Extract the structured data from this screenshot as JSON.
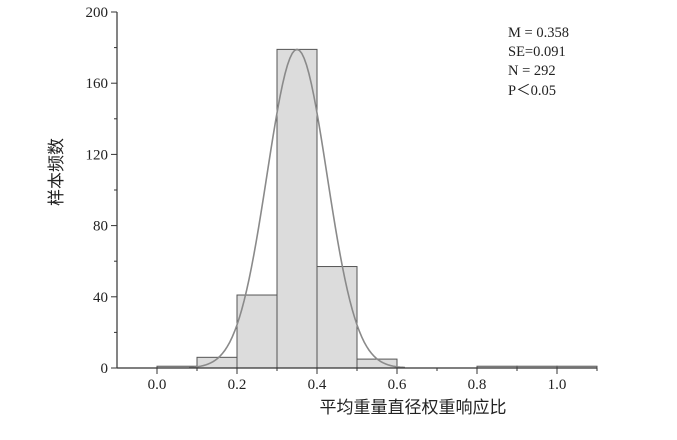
{
  "chart_data": {
    "type": "bar",
    "subtype": "histogram-with-normal-curve",
    "xlabel": "平均重量直径权重响应比",
    "ylabel": "样本频数",
    "xlim": [
      -0.1,
      1.1
    ],
    "ylim": [
      0,
      200
    ],
    "x_ticks": [
      0.0,
      0.2,
      0.4,
      0.6,
      0.8,
      1.0
    ],
    "x_tick_labels": [
      "0.0",
      "0.2",
      "0.4",
      "0.6",
      "0.8",
      "1.0"
    ],
    "y_ticks": [
      0,
      40,
      80,
      120,
      160,
      200
    ],
    "y_tick_labels": [
      "0",
      "40",
      "80",
      "120",
      "160",
      "200"
    ],
    "bins": [
      {
        "x0": 0.0,
        "x1": 0.1,
        "count": 1
      },
      {
        "x0": 0.1,
        "x1": 0.2,
        "count": 6
      },
      {
        "x0": 0.2,
        "x1": 0.3,
        "count": 41
      },
      {
        "x0": 0.3,
        "x1": 0.4,
        "count": 179
      },
      {
        "x0": 0.4,
        "x1": 0.5,
        "count": 57
      },
      {
        "x0": 0.5,
        "x1": 0.6,
        "count": 5
      },
      {
        "x0": 0.8,
        "x1": 0.9,
        "count": 1
      },
      {
        "x0": 0.9,
        "x1": 1.0,
        "count": 1
      },
      {
        "x0": 1.0,
        "x1": 1.1,
        "count": 1
      }
    ],
    "normal_curve": {
      "mean": 0.35,
      "sd": 0.075,
      "peak": 179
    },
    "annotations": [
      "M = 0.358",
      "SE=0.091",
      "N = 292",
      "P＜0.05"
    ],
    "grid": false
  }
}
